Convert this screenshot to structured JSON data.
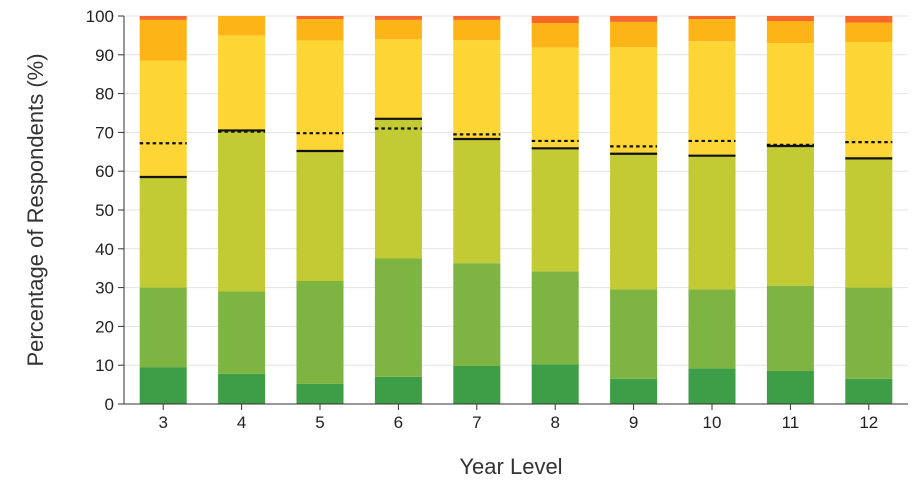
{
  "chart_data": {
    "type": "bar",
    "stacked": true,
    "xlabel": "Year Level",
    "ylabel": "Percentage of Respondents (%)",
    "ylim": [
      0,
      100
    ],
    "yticks": [
      0,
      10,
      20,
      30,
      40,
      50,
      60,
      70,
      80,
      90,
      100
    ],
    "grid": "horizontal",
    "categories": [
      "3",
      "4",
      "5",
      "6",
      "7",
      "8",
      "9",
      "10",
      "11",
      "12"
    ],
    "series": [
      {
        "color": "#3e9e48",
        "values": [
          9.5,
          7.8,
          5.2,
          7.0,
          9.8,
          10.2,
          6.5,
          9.2,
          8.5,
          6.5
        ]
      },
      {
        "color": "#7db442",
        "values": [
          20.5,
          21.2,
          26.5,
          30.5,
          26.5,
          24.0,
          23.0,
          20.3,
          22.0,
          23.5
        ]
      },
      {
        "color": "#c2cb33",
        "values": [
          28.5,
          41.5,
          33.5,
          36.0,
          32.0,
          31.7,
          35.0,
          34.5,
          36.0,
          33.3
        ]
      },
      {
        "color": "#fdd535",
        "values": [
          30.0,
          24.5,
          28.5,
          20.5,
          25.5,
          26.0,
          27.5,
          29.5,
          26.5,
          30.0
        ]
      },
      {
        "color": "#fdb416",
        "values": [
          10.5,
          5.0,
          5.5,
          5.0,
          5.2,
          6.3,
          6.5,
          5.7,
          5.7,
          5.0
        ]
      },
      {
        "color": "#f7662a",
        "values": [
          1.0,
          0.0,
          0.8,
          1.0,
          1.0,
          1.8,
          1.5,
          0.8,
          1.3,
          1.7
        ]
      }
    ],
    "solid_marker": [
      58.5,
      70.5,
      65.2,
      73.5,
      68.3,
      65.9,
      64.5,
      64.0,
      66.5,
      63.3
    ],
    "dotted_marker": [
      67.2,
      70.2,
      69.8,
      71.0,
      69.5,
      67.8,
      66.4,
      67.8,
      66.8,
      67.5
    ]
  }
}
